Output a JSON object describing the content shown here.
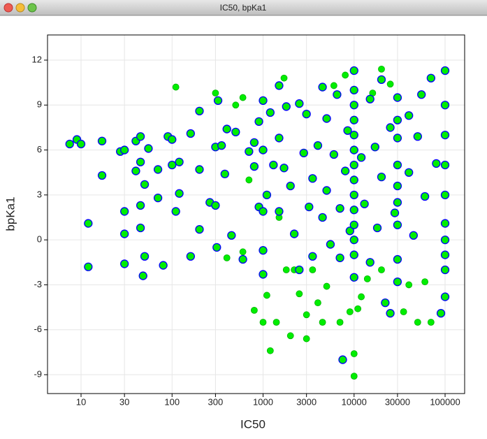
{
  "window_title": "IC50, bpKa1",
  "chart_data": {
    "type": "scatter",
    "xlabel": "IC50",
    "ylabel": "bpKa1",
    "xscale": "log",
    "grid": true,
    "xlim": [
      4.28,
      164000
    ],
    "ylim": [
      -10.26,
      13.68
    ],
    "xticks": [
      10,
      30,
      100,
      300,
      1000,
      3000,
      10000,
      30000,
      100000
    ],
    "yticks": [
      -9,
      -6,
      -3,
      0,
      3,
      6,
      9,
      12
    ],
    "series": [
      {
        "color": "#00ee00",
        "edgecolor": "#00b000",
        "x": [
          110,
          300,
          500,
          600,
          700,
          800,
          1000,
          1100,
          1200,
          1400,
          1700,
          1800,
          2000,
          2500,
          3000,
          3000,
          3500,
          4000,
          4500,
          5000,
          6000,
          7000,
          8000,
          9000,
          10000,
          10000,
          11000,
          12000,
          14000,
          16000,
          20000,
          20000,
          25000,
          35000,
          40000,
          50000,
          60000,
          70000,
          600,
          400,
          2200,
          1500
        ],
        "values": [
          10.2,
          9.8,
          9,
          9.5,
          4,
          -4.7,
          -5.5,
          -3.7,
          -7.4,
          -5.5,
          10.8,
          -2,
          -6.4,
          -3.6,
          -6.6,
          -5,
          -2,
          -4.2,
          -5.5,
          -3.1,
          10.3,
          -5.5,
          11,
          -4.8,
          -9.1,
          -7.6,
          -4.6,
          -3.8,
          -2.6,
          9.8,
          11.4,
          -2,
          10.4,
          -4.8,
          -3,
          -5.5,
          -2.8,
          -5.5,
          -0.8,
          -1.2,
          -2,
          1.5
        ]
      },
      {
        "color": "#00ee00",
        "edgecolor": "#0000ff",
        "x": [
          7.5,
          9,
          10,
          17,
          17,
          12,
          12,
          27,
          30,
          30,
          30,
          30,
          40,
          40,
          45,
          45,
          45,
          45,
          50,
          50,
          48,
          55,
          70,
          70,
          80,
          90,
          100,
          100,
          110,
          120,
          120,
          160,
          160,
          200,
          200,
          200,
          260,
          300,
          300,
          310,
          320,
          350,
          380,
          400,
          450,
          500,
          600,
          700,
          800,
          800,
          900,
          900,
          1000,
          1000,
          1000,
          1000,
          1000,
          1100,
          1200,
          1300,
          1500,
          1500,
          1500,
          1700,
          1800,
          2000,
          2200,
          2500,
          2500,
          2800,
          3000,
          3200,
          3500,
          3500,
          4000,
          4500,
          4500,
          5000,
          5000,
          5500,
          6000,
          6500,
          7000,
          7000,
          7500,
          8000,
          8500,
          9000,
          10000,
          10000,
          10000,
          10000,
          10000,
          10000,
          10000,
          10000,
          10000,
          10000,
          10000,
          10000,
          10000,
          10000,
          12000,
          13000,
          15000,
          15000,
          17000,
          18000,
          20000,
          20000,
          22000,
          25000,
          25000,
          28000,
          30000,
          30000,
          30000,
          30000,
          30000,
          30000,
          30000,
          30000,
          30000,
          40000,
          40000,
          45000,
          50000,
          55000,
          60000,
          70000,
          80000,
          90000,
          100000,
          100000,
          100000,
          100000,
          100000,
          100000,
          100000,
          100000,
          100000,
          100000
        ],
        "values": [
          6.4,
          6.7,
          6.4,
          6.6,
          4.3,
          1.1,
          -1.8,
          5.9,
          6,
          1.9,
          0.4,
          -1.6,
          6.6,
          4.6,
          6.9,
          5.2,
          2.3,
          0.8,
          3.7,
          -1.1,
          -2.4,
          6.1,
          4.7,
          2.8,
          -1.7,
          6.9,
          6.7,
          5,
          1.9,
          5.2,
          3.1,
          7.1,
          -1.1,
          8.6,
          4.7,
          0.7,
          2.5,
          6.2,
          2.3,
          -0.5,
          9.3,
          6.3,
          4.4,
          7.4,
          0.3,
          7.2,
          -1.3,
          5.9,
          6.5,
          4.9,
          7.9,
          2.2,
          9.3,
          6,
          1.9,
          -0.7,
          -2.3,
          3,
          8.5,
          5,
          10.3,
          6.8,
          1.9,
          4.8,
          8.9,
          3.6,
          0.4,
          9.1,
          -2,
          5.8,
          8.4,
          2.2,
          4.1,
          -1.1,
          6.3,
          10.2,
          1.5,
          8.1,
          3.3,
          -0.3,
          5.7,
          9.7,
          2.1,
          -1.2,
          -8,
          4.6,
          7.3,
          0.6,
          11.3,
          10,
          9,
          8,
          7,
          6,
          5,
          4,
          3,
          2,
          1,
          0,
          -1,
          -2.5,
          5.5,
          2.4,
          9.4,
          -1.5,
          6.2,
          0.8,
          10.7,
          4.2,
          -4.2,
          7.5,
          -4.9,
          1.8,
          9.5,
          8,
          6.8,
          5,
          3.6,
          2.5,
          1,
          -1.3,
          -2.8,
          8.3,
          4.5,
          0.3,
          6.9,
          9.7,
          2.9,
          10.8,
          5.1,
          -4.9,
          11.3,
          9,
          7,
          5,
          3,
          1.1,
          0,
          -1,
          -2,
          -3.8
        ]
      }
    ]
  }
}
